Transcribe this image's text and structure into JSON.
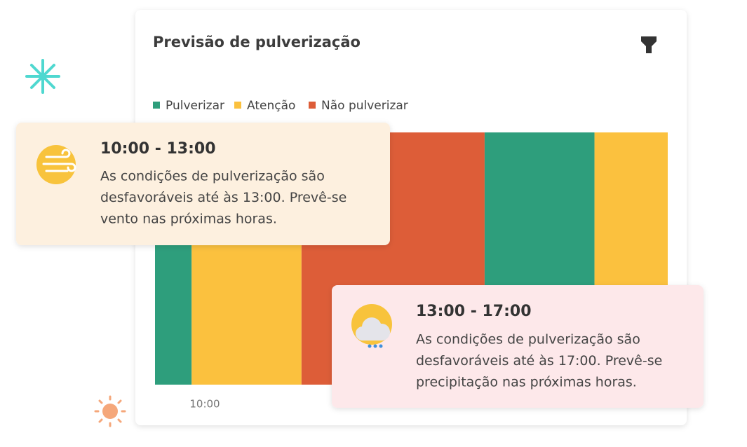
{
  "card": {
    "title": "Previsão de pulverização",
    "legend": [
      {
        "label": "Pulverizar",
        "color": "#2e9e7c"
      },
      {
        "label": "Atenção",
        "color": "#fbc13e"
      },
      {
        "label": "Não pulverizar",
        "color": "#dd5d38"
      }
    ],
    "segments": [
      {
        "status": 0,
        "hours": 1
      },
      {
        "status": 1,
        "hours": 3
      },
      {
        "status": 2,
        "hours": 5
      },
      {
        "status": 0,
        "hours": 3
      },
      {
        "status": 1,
        "hours": 2
      }
    ],
    "x_label": "10:00"
  },
  "tooltips": [
    {
      "time": "10:00 - 13:00",
      "lines": [
        "As condições de pulverização são",
        "desfavoráveis até às 13:00. Prevê-se",
        "vento nas próximas horas."
      ]
    },
    {
      "time": "13:00 - 17:00",
      "lines": [
        "As condições de pulverização são",
        "desfavoráveis até às 17:00. Prevê-se",
        "precipitação nas próximas horas."
      ]
    }
  ]
}
